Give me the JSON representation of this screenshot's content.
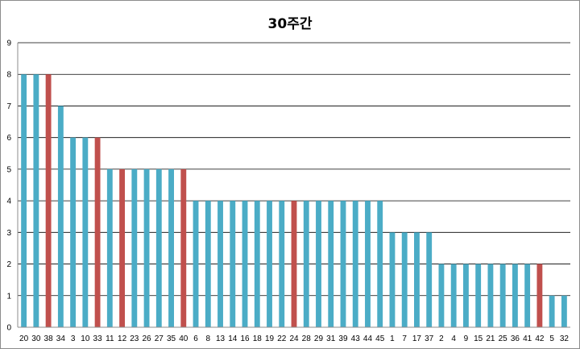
{
  "chart_data": {
    "type": "bar",
    "title": "30주간",
    "xlabel": "",
    "ylabel": "",
    "ylim": [
      0,
      9
    ],
    "yticks": [
      0,
      1,
      2,
      3,
      4,
      5,
      6,
      7,
      8,
      9
    ],
    "grid": true,
    "legend": "none",
    "colors": {
      "default": "#4bacc6",
      "highlight": "#c0504d",
      "grid": "#000000",
      "frame": "#8c8c8c"
    },
    "categories": [
      "20",
      "30",
      "38",
      "34",
      "3",
      "10",
      "33",
      "11",
      "12",
      "23",
      "26",
      "27",
      "35",
      "40",
      "6",
      "8",
      "13",
      "14",
      "16",
      "18",
      "19",
      "22",
      "24",
      "28",
      "29",
      "31",
      "39",
      "43",
      "44",
      "45",
      "1",
      "7",
      "17",
      "37",
      "2",
      "4",
      "9",
      "15",
      "21",
      "25",
      "36",
      "41",
      "42",
      "5",
      "32"
    ],
    "values": [
      8,
      8,
      8,
      7,
      6,
      6,
      6,
      5,
      5,
      5,
      5,
      5,
      5,
      5,
      4,
      4,
      4,
      4,
      4,
      4,
      4,
      4,
      4,
      4,
      4,
      4,
      4,
      4,
      4,
      4,
      3,
      3,
      3,
      3,
      2,
      2,
      2,
      2,
      2,
      2,
      2,
      2,
      2,
      1,
      1
    ],
    "highlighted": [
      "38",
      "33",
      "12",
      "40",
      "24",
      "42"
    ]
  }
}
